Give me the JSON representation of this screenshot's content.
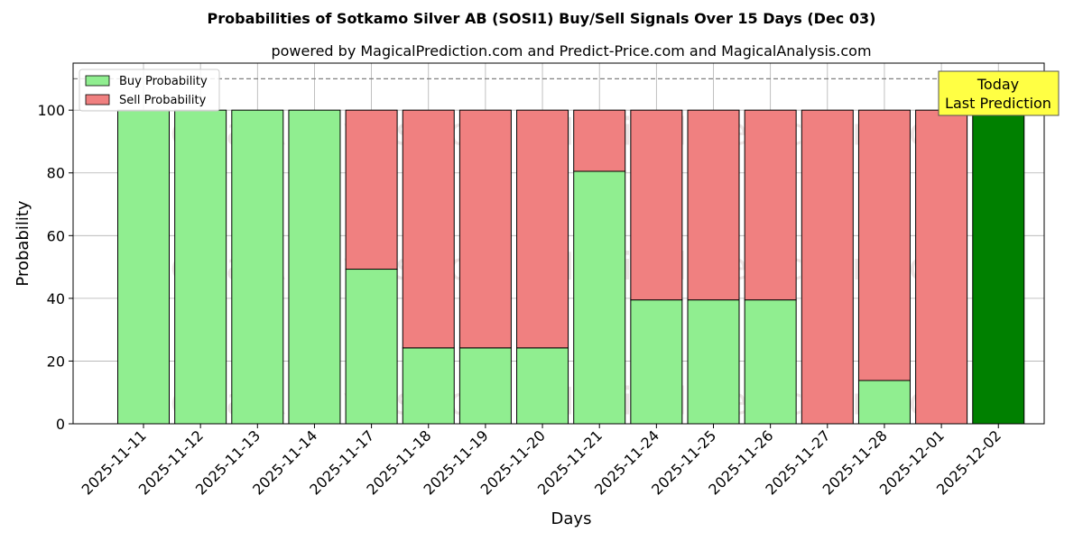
{
  "chart_data": {
    "type": "bar",
    "title": "Probabilities of Sotkamo Silver AB (SOSI1) Buy/Sell Signals Over 15 Days (Dec 03)",
    "subtitle": "powered by MagicalPrediction.com and Predict-Price.com and MagicalAnalysis.com",
    "xlabel": "Days",
    "ylabel": "Probability",
    "ylim": [
      0,
      115
    ],
    "yticks": [
      0,
      20,
      40,
      60,
      80,
      100
    ],
    "reference_line": 110,
    "grid": true,
    "legend_position": "top-left",
    "categories": [
      "2025-11-11",
      "2025-11-12",
      "2025-11-13",
      "2025-11-14",
      "2025-11-17",
      "2025-11-18",
      "2025-11-19",
      "2025-11-20",
      "2025-11-21",
      "2025-11-24",
      "2025-11-25",
      "2025-11-26",
      "2025-11-27",
      "2025-11-28",
      "2025-12-01",
      "2025-12-02"
    ],
    "series": [
      {
        "name": "Buy Probability",
        "color": "#90ee90",
        "values": [
          100,
          100,
          100,
          100,
          49.3,
          24.2,
          24.2,
          24.2,
          80.5,
          39.5,
          39.5,
          39.5,
          0,
          13.8,
          0,
          100
        ]
      },
      {
        "name": "Sell Probability",
        "color": "#f08080",
        "values": [
          0,
          0,
          0,
          0,
          50.7,
          75.8,
          75.8,
          75.8,
          19.5,
          60.5,
          60.5,
          60.5,
          100,
          86.2,
          100,
          0
        ]
      }
    ],
    "today_bar_color": "#008000",
    "annotation": {
      "line1": "Today",
      "line2": "Last Prediction",
      "color": "#ffff44"
    },
    "watermarks": [
      "MagicalAnalysis.com",
      "MagicalPrediction.com"
    ]
  }
}
